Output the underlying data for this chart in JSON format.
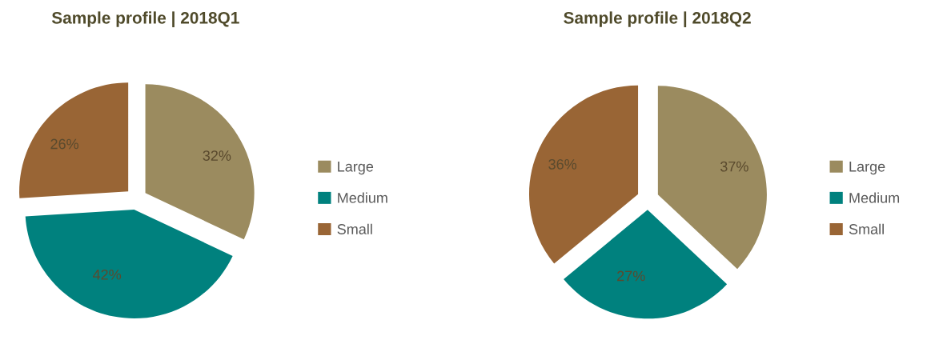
{
  "chart_data": [
    {
      "type": "pie",
      "title": "Sample profile | 2018Q1",
      "categories": [
        "Large",
        "Medium",
        "Small"
      ],
      "values": [
        32,
        42,
        26
      ],
      "colors": [
        "#9b8b5f",
        "#00817e",
        "#996535"
      ],
      "value_labels": [
        "32%",
        "42%",
        "26%"
      ],
      "legend": "right"
    },
    {
      "type": "pie",
      "title": "Sample profile | 2018Q2",
      "categories": [
        "Large",
        "Medium",
        "Small"
      ],
      "values": [
        37,
        27,
        36
      ],
      "colors": [
        "#9b8b5f",
        "#00817e",
        "#996535"
      ],
      "value_labels": [
        "37%",
        "27%",
        "36%"
      ],
      "legend": "right"
    }
  ]
}
